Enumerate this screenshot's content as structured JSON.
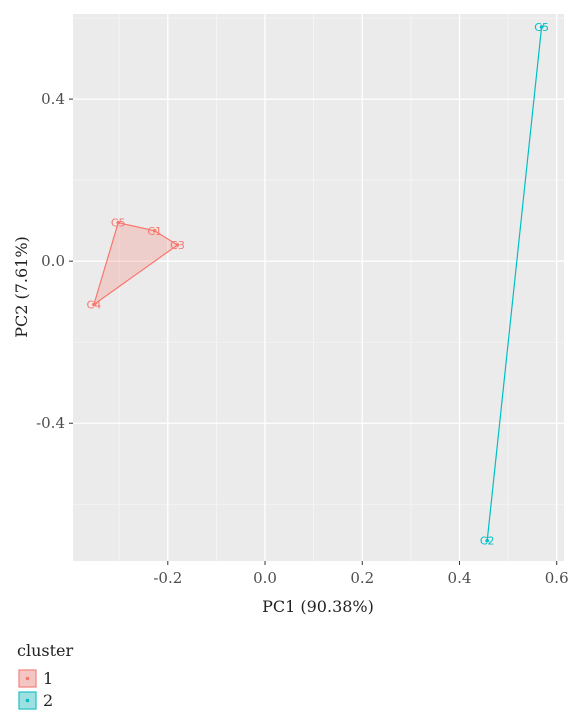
{
  "chart_data": {
    "type": "scatter",
    "title": "",
    "xlabel": "PC1 (90.38%)",
    "ylabel": "PC2 (7.61%)",
    "xlim": [
      -0.395,
      0.615
    ],
    "ylim": [
      -0.74,
      0.61
    ],
    "x_ticks": [
      -0.2,
      0.0,
      0.2,
      0.4,
      0.6
    ],
    "x_tick_labels": [
      "-0.2",
      "0.0",
      "0.2",
      "0.4",
      "0.6"
    ],
    "y_ticks": [
      -0.4,
      0.0,
      0.4
    ],
    "y_tick_labels": [
      "-0.4",
      "0.0",
      "0.4"
    ],
    "grid": true,
    "legend": {
      "title": "cluster",
      "position": "bottom"
    },
    "series": [
      {
        "name": "1",
        "color": "#F8766D",
        "hull": true,
        "points": [
          {
            "label": "C5",
            "x": -0.302,
            "y": 0.095
          },
          {
            "label": "C1",
            "x": -0.227,
            "y": 0.075
          },
          {
            "label": "C3",
            "x": -0.18,
            "y": 0.04
          },
          {
            "label": "C4",
            "x": -0.352,
            "y": -0.107
          }
        ]
      },
      {
        "name": "2",
        "color": "#00BFC4",
        "hull": true,
        "points": [
          {
            "label": "C5",
            "x": 0.569,
            "y": 0.578
          },
          {
            "label": "C2",
            "x": 0.457,
            "y": -0.69
          }
        ]
      }
    ]
  }
}
